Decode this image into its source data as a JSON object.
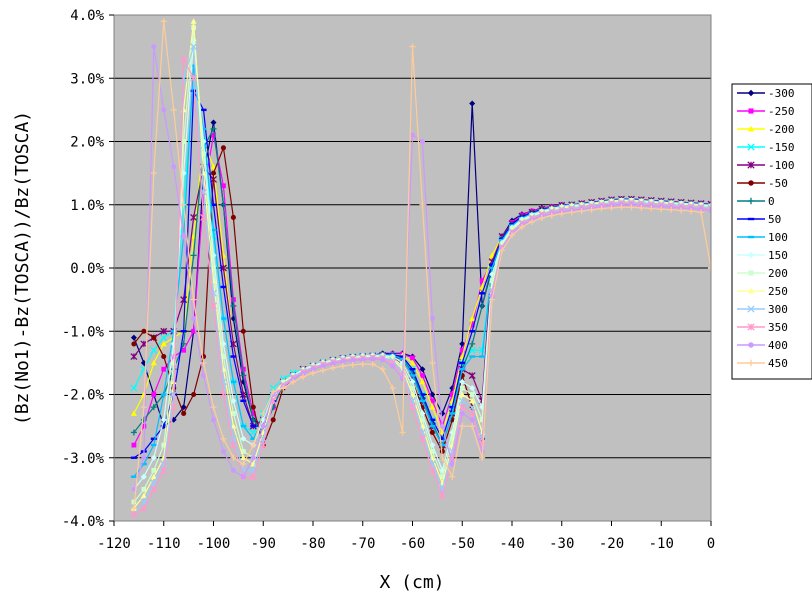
{
  "chart_data": {
    "type": "line",
    "title": "",
    "xlabel": "X (cm)",
    "ylabel": "(Bz(No1)-Bz(TOSCA))/Bz(TOSCA)",
    "xlim": [
      -120,
      0
    ],
    "ylim": [
      -4.0,
      4.0
    ],
    "x_ticks": [
      "-120",
      "-110",
      "-100",
      "-90",
      "-80",
      "-70",
      "-60",
      "-50",
      "-40",
      "-30",
      "-20",
      "-10",
      "0"
    ],
    "y_ticks": [
      "4.0%",
      "3.0%",
      "2.0%",
      "1.0%",
      "0.0%",
      "-1.0%",
      "-2.0%",
      "-3.0%",
      "-4.0%"
    ],
    "grid": "horizontal",
    "plot_background": "#c0c0c0",
    "legend_position": "right",
    "x": [
      -116,
      -114,
      -112,
      -110,
      -108,
      -106,
      -104,
      -102,
      -100,
      -98,
      -96,
      -94,
      -92,
      -90,
      -88,
      -86,
      -84,
      -82,
      -80,
      -78,
      -76,
      -74,
      -72,
      -70,
      -68,
      -66,
      -64,
      -62,
      -60,
      -58,
      -56,
      -54,
      -52,
      -50,
      -48,
      -46,
      -44,
      -42,
      -40,
      -38,
      -36,
      -34,
      -32,
      -30,
      -28,
      -26,
      -24,
      -22,
      -20,
      -18,
      -16,
      -14,
      -12,
      -10,
      -8,
      -6,
      -4,
      -2,
      0
    ],
    "series": [
      {
        "name": "-300",
        "color": "#000080",
        "marker": "diamond",
        "values": [
          -1.1,
          -1.5,
          -2.0,
          -2.5,
          -2.4,
          -2.2,
          -1.0,
          1.5,
          2.3,
          1.0,
          -0.8,
          -1.8,
          -2.4,
          -2.5,
          -2.0,
          -1.8,
          -1.7,
          -1.6,
          -1.55,
          -1.5,
          -1.45,
          -1.42,
          -1.4,
          -1.4,
          -1.38,
          -1.35,
          -1.35,
          -1.35,
          -1.4,
          -1.6,
          -2.0,
          -2.3,
          -1.9,
          -1.2,
          2.6,
          -0.6,
          0.0,
          0.5,
          0.75,
          0.85,
          0.9,
          0.95,
          0.97,
          1.0,
          1.0,
          1.02,
          1.03,
          1.05,
          1.07,
          1.08,
          1.08,
          1.07,
          1.06,
          1.05,
          1.04,
          1.03,
          1.02,
          1.0,
          1.0
        ]
      },
      {
        "name": "-250",
        "color": "#ff00ff",
        "marker": "square",
        "values": [
          -2.8,
          -2.5,
          -2.0,
          -1.6,
          -1.4,
          -1.3,
          -1.0,
          1.2,
          2.1,
          1.3,
          -0.5,
          -1.6,
          -2.3,
          -2.6,
          -2.2,
          -1.85,
          -1.72,
          -1.62,
          -1.55,
          -1.5,
          -1.45,
          -1.42,
          -1.4,
          -1.4,
          -1.38,
          -1.37,
          -1.36,
          -1.36,
          -1.42,
          -1.7,
          -2.1,
          -2.5,
          -2.0,
          -1.3,
          -0.9,
          -0.2,
          0.1,
          0.45,
          0.72,
          0.84,
          0.9,
          0.94,
          0.97,
          1.0,
          1.0,
          1.02,
          1.04,
          1.06,
          1.08,
          1.09,
          1.09,
          1.08,
          1.07,
          1.06,
          1.05,
          1.04,
          1.03,
          1.02,
          1.01
        ]
      },
      {
        "name": "-200",
        "color": "#ffff00",
        "marker": "triangle",
        "values": [
          -2.3,
          -2.0,
          -1.5,
          -1.2,
          -1.1,
          -1.0,
          0.5,
          2.0,
          1.6,
          0.2,
          -1.2,
          -2.0,
          -2.5,
          -2.4,
          -2.0,
          -1.8,
          -1.7,
          -1.6,
          -1.55,
          -1.5,
          -1.45,
          -1.42,
          -1.4,
          -1.4,
          -1.38,
          -1.37,
          -1.37,
          -1.38,
          -1.5,
          -1.8,
          -2.2,
          -2.6,
          -2.1,
          -1.4,
          -0.8,
          -0.3,
          0.2,
          0.5,
          0.7,
          0.82,
          0.88,
          0.93,
          0.96,
          0.99,
          1.0,
          1.01,
          1.03,
          1.05,
          1.07,
          1.08,
          1.08,
          1.07,
          1.06,
          1.05,
          1.04,
          1.03,
          1.02,
          1.01,
          1.0
        ]
      },
      {
        "name": "-150",
        "color": "#00ffff",
        "marker": "x",
        "values": [
          -1.9,
          -1.6,
          -1.3,
          -1.1,
          -1.0,
          1.0,
          3.0,
          2.0,
          0.5,
          -0.8,
          -1.8,
          -2.5,
          -2.6,
          -2.3,
          -1.9,
          -1.75,
          -1.66,
          -1.6,
          -1.54,
          -1.49,
          -1.45,
          -1.42,
          -1.4,
          -1.39,
          -1.38,
          -1.37,
          -1.38,
          -1.42,
          -1.6,
          -2.0,
          -2.4,
          -2.7,
          -2.2,
          -1.5,
          -1.3,
          -1.3,
          0.0,
          0.45,
          0.68,
          0.8,
          0.87,
          0.92,
          0.95,
          0.98,
          1.0,
          1.01,
          1.03,
          1.05,
          1.07,
          1.08,
          1.08,
          1.07,
          1.06,
          1.05,
          1.04,
          1.03,
          1.02,
          1.01,
          1.0
        ]
      },
      {
        "name": "-100",
        "color": "#800080",
        "marker": "asterisk",
        "values": [
          -1.4,
          -1.2,
          -1.1,
          -1.0,
          -1.0,
          -0.5,
          0.8,
          1.6,
          1.4,
          0.0,
          -1.2,
          -2.0,
          -2.5,
          -2.4,
          -2.0,
          -1.8,
          -1.7,
          -1.6,
          -1.55,
          -1.5,
          -1.46,
          -1.43,
          -1.41,
          -1.4,
          -1.39,
          -1.38,
          -1.39,
          -1.45,
          -1.7,
          -2.1,
          -2.5,
          -2.8,
          -2.3,
          -1.6,
          -1.7,
          -2.1,
          0.1,
          0.5,
          0.7,
          0.82,
          0.88,
          0.93,
          0.96,
          0.99,
          1.0,
          1.02,
          1.04,
          1.06,
          1.08,
          1.09,
          1.09,
          1.08,
          1.07,
          1.06,
          1.05,
          1.04,
          1.03,
          1.02,
          1.01
        ]
      },
      {
        "name": "-50",
        "color": "#800000",
        "marker": "circle",
        "values": [
          -1.2,
          -1.0,
          -1.1,
          -1.4,
          -1.9,
          -2.3,
          -2.0,
          -1.4,
          1.5,
          1.9,
          0.8,
          -1.0,
          -2.2,
          -2.8,
          -2.4,
          -1.9,
          -1.75,
          -1.65,
          -1.57,
          -1.52,
          -1.48,
          -1.44,
          -1.42,
          -1.41,
          -1.4,
          -1.4,
          -1.42,
          -1.5,
          -1.8,
          -2.2,
          -2.6,
          -2.9,
          -2.4,
          -1.7,
          -2.2,
          -2.7,
          0.0,
          0.45,
          0.68,
          0.8,
          0.87,
          0.92,
          0.95,
          0.98,
          1.0,
          1.01,
          1.03,
          1.05,
          1.07,
          1.08,
          1.08,
          1.07,
          1.06,
          1.05,
          1.04,
          1.03,
          1.02,
          1.01,
          1.0
        ]
      },
      {
        "name": "0",
        "color": "#008080",
        "marker": "plus",
        "values": [
          -2.6,
          -2.4,
          -2.2,
          -2.0,
          -1.6,
          -1.2,
          0.2,
          1.9,
          2.2,
          1.0,
          -0.6,
          -1.7,
          -2.4,
          -2.6,
          -2.2,
          -1.85,
          -1.72,
          -1.62,
          -1.55,
          -1.5,
          -1.46,
          -1.43,
          -1.41,
          -1.4,
          -1.39,
          -1.38,
          -1.38,
          -1.43,
          -1.65,
          -2.05,
          -2.45,
          -2.8,
          -2.3,
          -1.6,
          -1.2,
          -0.6,
          0.05,
          0.46,
          0.69,
          0.81,
          0.87,
          0.92,
          0.95,
          0.98,
          1.0,
          1.01,
          1.03,
          1.05,
          1.07,
          1.08,
          1.08,
          1.07,
          1.06,
          1.05,
          1.04,
          1.03,
          1.02,
          1.01,
          1.0
        ]
      },
      {
        "name": "50",
        "color": "#0000ff",
        "marker": "dash",
        "values": [
          -3.0,
          -2.9,
          -2.7,
          -2.5,
          -2.0,
          -1.0,
          2.8,
          2.5,
          1.0,
          -0.3,
          -1.4,
          -2.1,
          -2.5,
          -2.5,
          -2.1,
          -1.82,
          -1.7,
          -1.61,
          -1.54,
          -1.49,
          -1.45,
          -1.42,
          -1.4,
          -1.39,
          -1.38,
          -1.37,
          -1.37,
          -1.4,
          -1.6,
          -2.0,
          -2.4,
          -2.7,
          -2.2,
          -1.5,
          -1.0,
          -0.4,
          0.05,
          0.46,
          0.69,
          0.81,
          0.87,
          0.92,
          0.95,
          0.98,
          1.0,
          1.01,
          1.03,
          1.05,
          1.07,
          1.08,
          1.08,
          1.07,
          1.06,
          1.05,
          1.04,
          1.03,
          1.02,
          1.01,
          1.0
        ]
      },
      {
        "name": "100",
        "color": "#00c0ff",
        "marker": "dash",
        "values": [
          -3.3,
          -3.1,
          -2.8,
          -2.0,
          -1.0,
          0.5,
          3.2,
          2.2,
          0.6,
          -0.8,
          -1.8,
          -2.5,
          -2.7,
          -2.4,
          -2.0,
          -1.8,
          -1.7,
          -1.6,
          -1.54,
          -1.49,
          -1.45,
          -1.42,
          -1.4,
          -1.39,
          -1.38,
          -1.37,
          -1.38,
          -1.44,
          -1.7,
          -2.1,
          -2.5,
          -2.8,
          -2.3,
          -1.6,
          -1.4,
          -1.4,
          0.0,
          0.44,
          0.67,
          0.79,
          0.86,
          0.91,
          0.95,
          0.98,
          1.0,
          1.01,
          1.03,
          1.05,
          1.07,
          1.08,
          1.08,
          1.07,
          1.06,
          1.05,
          1.04,
          1.03,
          1.02,
          1.01,
          1.0
        ]
      },
      {
        "name": "150",
        "color": "#ccffff",
        "marker": "diamond",
        "values": [
          -3.5,
          -3.3,
          -3.0,
          -2.4,
          -1.2,
          1.5,
          3.6,
          2.0,
          0.2,
          -1.2,
          -2.1,
          -2.7,
          -2.8,
          -2.4,
          -2.0,
          -1.8,
          -1.7,
          -1.6,
          -1.54,
          -1.49,
          -1.45,
          -1.42,
          -1.4,
          -1.39,
          -1.38,
          -1.38,
          -1.4,
          -1.5,
          -1.8,
          -2.3,
          -2.8,
          -3.2,
          -2.6,
          -1.8,
          -1.9,
          -2.2,
          -0.1,
          0.4,
          0.64,
          0.77,
          0.84,
          0.9,
          0.94,
          0.97,
          0.99,
          1.0,
          1.02,
          1.04,
          1.06,
          1.07,
          1.07,
          1.06,
          1.05,
          1.04,
          1.03,
          1.02,
          1.01,
          1.0,
          0.99
        ]
      },
      {
        "name": "200",
        "color": "#ccffcc",
        "marker": "square",
        "values": [
          -3.7,
          -3.5,
          -3.2,
          -2.8,
          -1.5,
          2.0,
          3.8,
          1.8,
          0.0,
          -1.4,
          -2.3,
          -2.9,
          -3.0,
          -2.5,
          -2.0,
          -1.8,
          -1.7,
          -1.61,
          -1.55,
          -1.5,
          -1.46,
          -1.43,
          -1.41,
          -1.4,
          -1.39,
          -1.39,
          -1.42,
          -1.55,
          -1.9,
          -2.4,
          -2.9,
          -3.3,
          -2.7,
          -1.9,
          -2.0,
          -2.4,
          -0.2,
          0.38,
          0.62,
          0.75,
          0.83,
          0.89,
          0.93,
          0.96,
          0.98,
          1.0,
          1.02,
          1.04,
          1.06,
          1.07,
          1.07,
          1.06,
          1.05,
          1.04,
          1.03,
          1.02,
          1.01,
          1.0,
          0.98
        ]
      },
      {
        "name": "250",
        "color": "#ffff99",
        "marker": "triangle",
        "values": [
          -3.8,
          -3.6,
          -3.3,
          -3.0,
          -1.8,
          2.5,
          3.9,
          1.5,
          -0.2,
          -1.6,
          -2.5,
          -3.0,
          -3.1,
          -2.6,
          -2.05,
          -1.82,
          -1.71,
          -1.62,
          -1.56,
          -1.51,
          -1.47,
          -1.44,
          -1.42,
          -1.41,
          -1.4,
          -1.4,
          -1.44,
          -1.6,
          -2.0,
          -2.5,
          -3.0,
          -3.4,
          -2.8,
          -2.0,
          -2.1,
          -2.6,
          -0.3,
          0.36,
          0.6,
          0.74,
          0.82,
          0.88,
          0.92,
          0.95,
          0.97,
          0.99,
          1.01,
          1.03,
          1.05,
          1.06,
          1.06,
          1.05,
          1.04,
          1.03,
          1.02,
          1.01,
          1.0,
          0.99,
          0.97
        ]
      },
      {
        "name": "300",
        "color": "#99ccff",
        "marker": "x",
        "values": [
          -3.9,
          -3.7,
          -3.4,
          -3.1,
          -2.0,
          3.0,
          3.5,
          1.2,
          -0.4,
          -1.8,
          -2.7,
          -3.2,
          -3.2,
          -2.7,
          -2.1,
          -1.84,
          -1.72,
          -1.63,
          -1.57,
          -1.52,
          -1.48,
          -1.45,
          -1.43,
          -1.42,
          -1.41,
          -1.41,
          -1.46,
          -1.65,
          -2.1,
          -2.6,
          -3.1,
          -3.5,
          -2.9,
          -2.1,
          -2.2,
          -2.7,
          -0.35,
          0.34,
          0.58,
          0.72,
          0.8,
          0.86,
          0.9,
          0.93,
          0.95,
          0.97,
          0.99,
          1.01,
          1.03,
          1.04,
          1.04,
          1.03,
          1.02,
          1.01,
          1.0,
          0.99,
          0.98,
          0.97,
          0.95
        ]
      },
      {
        "name": "350",
        "color": "#ff99cc",
        "marker": "asterisk",
        "values": [
          -3.9,
          -3.8,
          -3.5,
          -3.2,
          -2.2,
          3.3,
          3.0,
          0.8,
          -0.6,
          -2.0,
          -2.8,
          -3.3,
          -3.3,
          -2.8,
          -2.1,
          -1.86,
          -1.74,
          -1.65,
          -1.58,
          -1.53,
          -1.49,
          -1.46,
          -1.44,
          -1.43,
          -1.42,
          -1.43,
          -1.5,
          -1.7,
          -2.2,
          -2.7,
          -3.2,
          -3.6,
          -3.0,
          -2.2,
          -2.3,
          -2.8,
          -0.4,
          0.32,
          0.56,
          0.7,
          0.78,
          0.84,
          0.88,
          0.91,
          0.93,
          0.95,
          0.97,
          0.99,
          1.01,
          1.02,
          1.02,
          1.01,
          1.0,
          0.99,
          0.98,
          0.97,
          0.96,
          0.95,
          0.93
        ]
      },
      {
        "name": "400",
        "color": "#cc99ff",
        "marker": "circle",
        "values": [
          -3.5,
          -3.0,
          3.5,
          2.5,
          1.6,
          0.5,
          -0.8,
          -1.7,
          -2.4,
          -2.9,
          -3.2,
          -3.3,
          -3.0,
          -2.5,
          -2.0,
          -1.88,
          -1.76,
          -1.67,
          -1.6,
          -1.55,
          -1.51,
          -1.48,
          -1.46,
          -1.45,
          -1.44,
          -1.45,
          -1.55,
          -1.75,
          2.1,
          2.0,
          -0.8,
          -2.5,
          -3.1,
          -2.3,
          -2.4,
          -2.9,
          -0.45,
          0.3,
          0.54,
          0.68,
          0.76,
          0.82,
          0.86,
          0.89,
          0.91,
          0.93,
          0.95,
          0.97,
          0.99,
          1.0,
          1.0,
          0.99,
          0.98,
          0.97,
          0.96,
          0.95,
          0.94,
          0.93,
          0.91
        ]
      },
      {
        "name": "450",
        "color": "#ffcc99",
        "marker": "plus",
        "values": [
          -3.8,
          -2.2,
          1.5,
          3.9,
          2.5,
          1.0,
          -0.5,
          -1.5,
          -2.2,
          -2.7,
          -3.0,
          -3.1,
          -2.8,
          -2.3,
          -1.95,
          -1.9,
          -1.8,
          -1.72,
          -1.66,
          -1.62,
          -1.58,
          -1.55,
          -1.53,
          -1.52,
          -1.52,
          -1.6,
          -1.9,
          -2.6,
          3.5,
          1.0,
          -1.5,
          -3.0,
          -3.3,
          -2.5,
          -2.5,
          -3.0,
          -0.5,
          0.28,
          0.52,
          0.65,
          0.73,
          0.79,
          0.83,
          0.86,
          0.88,
          0.9,
          0.92,
          0.94,
          0.95,
          0.96,
          0.96,
          0.95,
          0.94,
          0.93,
          0.92,
          0.91,
          0.9,
          0.88,
          0.0
        ]
      }
    ]
  }
}
